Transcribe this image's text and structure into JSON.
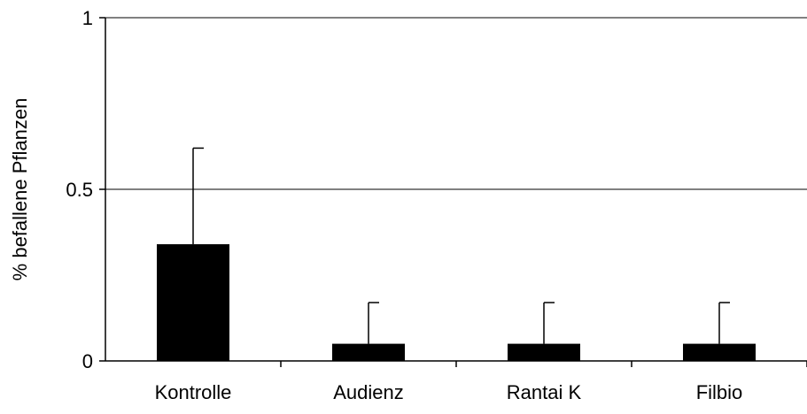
{
  "chart_data": {
    "type": "bar",
    "title": "",
    "xlabel": "",
    "ylabel": "% befallene Pflanzen",
    "categories": [
      "Kontrolle",
      "Audienz",
      "Rantai K",
      "Filbio"
    ],
    "values": [
      0.34,
      0.05,
      0.05,
      0.05
    ],
    "error_upper": [
      0.28,
      0.12,
      0.12,
      0.12
    ],
    "ylim": [
      0,
      1
    ],
    "yticks": [
      0,
      0.5,
      1
    ],
    "ytick_labels": [
      "0",
      "0.5",
      "1"
    ],
    "grid": "horizontal at 0.5 and 1",
    "legend": "none",
    "bar_color": "#000000"
  }
}
